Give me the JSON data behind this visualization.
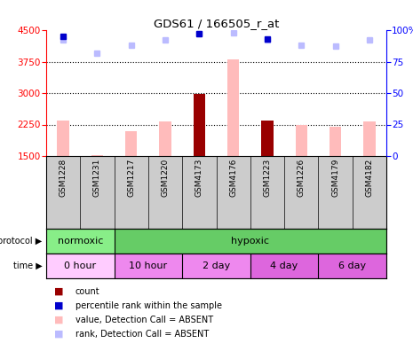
{
  "title": "GDS61 / 166505_r_at",
  "samples": [
    "GSM1228",
    "GSM1231",
    "GSM1217",
    "GSM1220",
    "GSM4173",
    "GSM4176",
    "GSM1223",
    "GSM1226",
    "GSM4179",
    "GSM4182"
  ],
  "value_absent": [
    2350,
    1530,
    2100,
    2330,
    null,
    3800,
    null,
    2250,
    2200,
    2320
  ],
  "count_present": [
    null,
    null,
    null,
    null,
    2980,
    null,
    2350,
    null,
    null,
    null
  ],
  "rank_absent": [
    92,
    82,
    88,
    92,
    97,
    98,
    92,
    88,
    87,
    92
  ],
  "rank_present": [
    95,
    null,
    null,
    null,
    97,
    null,
    93,
    null,
    null,
    null
  ],
  "ylim_left": [
    1500,
    4500
  ],
  "ylim_right": [
    0,
    100
  ],
  "yticks_left": [
    1500,
    2250,
    3000,
    3750,
    4500
  ],
  "yticks_right": [
    0,
    25,
    50,
    75,
    100
  ],
  "color_count": "#990000",
  "color_rank_present": "#0000cc",
  "color_value_absent": "#ffbbbb",
  "color_rank_absent": "#bbbbff",
  "protocol_labels": [
    "normoxic",
    "hypoxic"
  ],
  "protocol_colors": [
    "#88ee88",
    "#66cc66"
  ],
  "time_labels": [
    "0 hour",
    "10 hour",
    "2 day",
    "4 day",
    "6 day"
  ],
  "time_colors": [
    "#ffccff",
    "#ee88ee",
    "#ee88ee",
    "#dd66dd",
    "#dd66dd"
  ],
  "bar_width": 0.35,
  "n_samples": 10
}
